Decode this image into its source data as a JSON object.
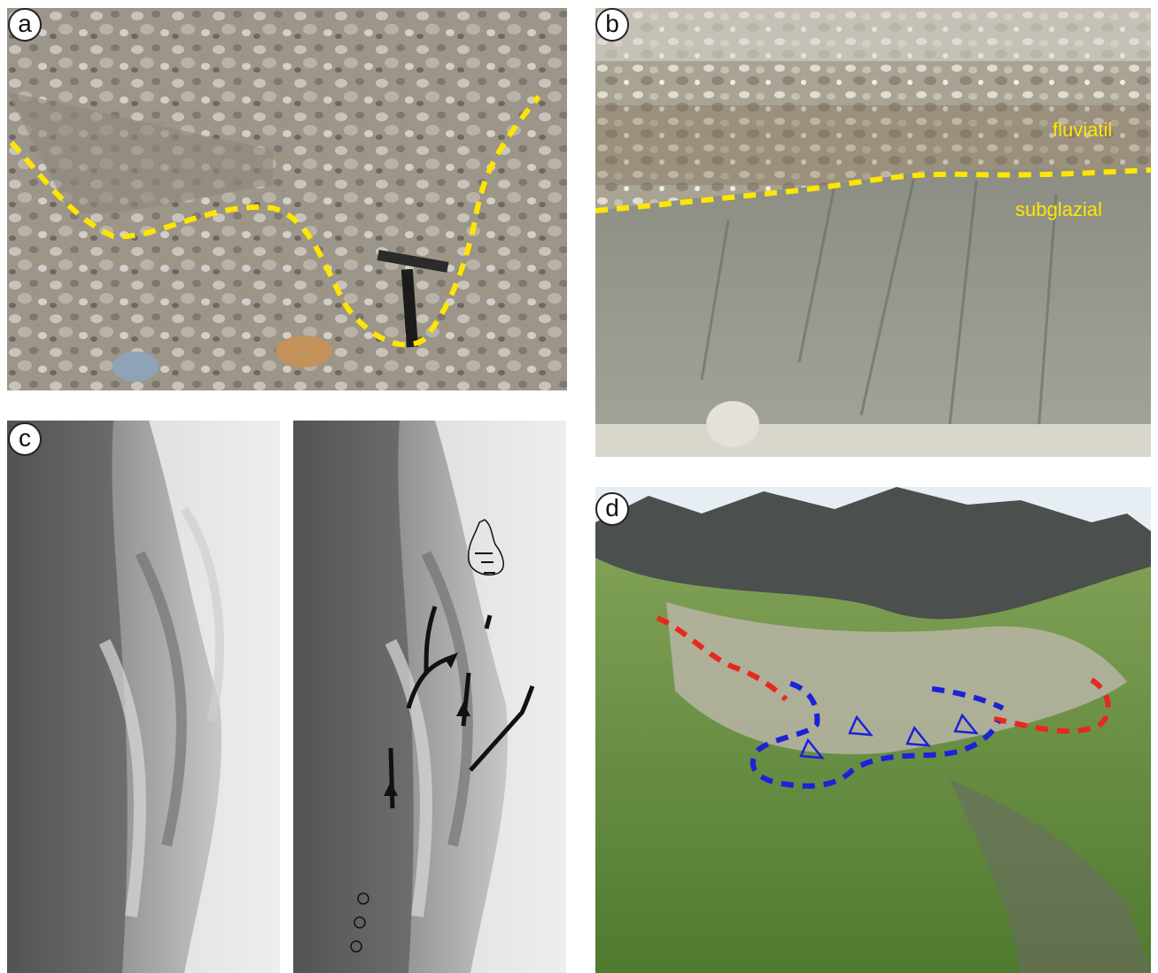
{
  "panels": {
    "a": {
      "label": "a"
    },
    "b": {
      "label": "b",
      "upper_unit": "fluviatil",
      "lower_unit": "subglazial"
    },
    "c": {
      "label": "c"
    },
    "d": {
      "label": "d"
    }
  },
  "colors": {
    "boundary_yellow": "#ffe600",
    "boundary_red": "#e8281e",
    "boundary_blue": "#1a23d8"
  }
}
